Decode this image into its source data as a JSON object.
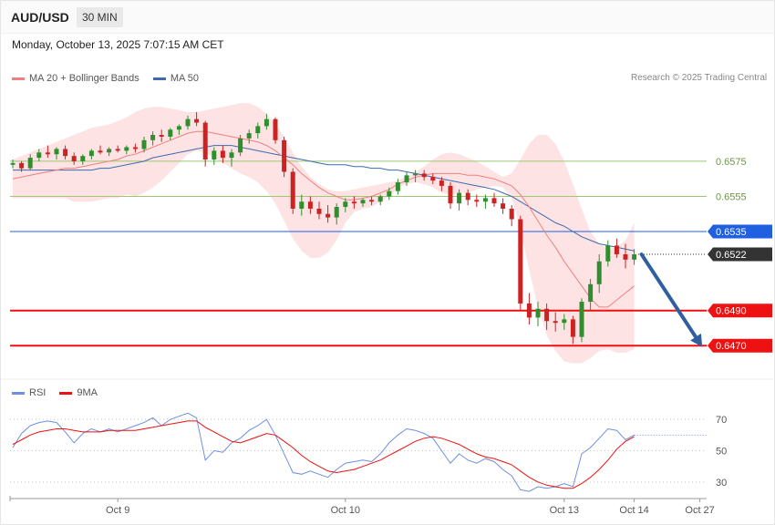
{
  "header": {
    "symbol": "AUD/USD",
    "timeframe": "30 MIN",
    "datetime": "Monday, October 13, 2025 7:07:15 AM CET"
  },
  "legend": {
    "ma20_label": "MA 20 + Bollinger Bands",
    "ma50_label": "MA 50",
    "rsi_label": "RSI",
    "ma9_label": "9MA",
    "credit": "Research © 2025 Trading Central"
  },
  "colors": {
    "ma20": "#f08080",
    "ma50": "#3d6ab0",
    "band_fill": "#fde3e3",
    "candle_up": "#2f8f2f",
    "candle_down": "#cc2222",
    "support": "#ee1111",
    "resistance_blue": "#1f5fe0",
    "resistance_green": "#9cc870",
    "current": "#333333",
    "rsi": "#6f8fe0",
    "rsi_ma": "#ee1111",
    "arrow": "#2f5f9f"
  },
  "chart_data": [
    {
      "type": "candlestick",
      "title": "AUD/USD",
      "ylim": [
        0.6453,
        0.6617
      ],
      "x_ticks": [
        "Oct 9",
        "Oct 10",
        "Oct 13",
        "Oct 14",
        "Oct 27"
      ],
      "levels": [
        {
          "label": "0.6575",
          "value": 0.6575,
          "kind": "resistance"
        },
        {
          "label": "0.6555",
          "value": 0.6555,
          "kind": "resistance"
        },
        {
          "label": "0.6535",
          "value": 0.6535,
          "kind": "pivot"
        },
        {
          "label": "0.6522",
          "value": 0.6522,
          "kind": "current"
        },
        {
          "label": "0.6490",
          "value": 0.649,
          "kind": "support"
        },
        {
          "label": "0.6470",
          "value": 0.647,
          "kind": "support"
        }
      ],
      "forecast": {
        "from": 0.6522,
        "to": 0.647
      },
      "series": [
        {
          "name": "MA 20",
          "values": [
            0.6565,
            0.6566,
            0.6567,
            0.6568,
            0.6569,
            0.657,
            0.6571,
            0.6571,
            0.6572,
            0.6573,
            0.6574,
            0.6575,
            0.6576,
            0.6578,
            0.6579,
            0.6581,
            0.6583,
            0.6585,
            0.6587,
            0.6589,
            0.6591,
            0.6592,
            0.6592,
            0.6591,
            0.659,
            0.6589,
            0.6588,
            0.6587,
            0.6586,
            0.6584,
            0.6581,
            0.6577,
            0.6573,
            0.6568,
            0.6564,
            0.656,
            0.6557,
            0.6555,
            0.6553,
            0.6553,
            0.6554,
            0.6555,
            0.6557,
            0.6559,
            0.6562,
            0.6564,
            0.6566,
            0.6567,
            0.6568,
            0.6568,
            0.6568,
            0.6568,
            0.6567,
            0.6567,
            0.6566,
            0.6565,
            0.6563,
            0.6561,
            0.6556,
            0.6549,
            0.6541,
            0.6533,
            0.6526,
            0.6518,
            0.6511,
            0.6504,
            0.6497,
            0.6492,
            0.6492,
            0.6496,
            0.65,
            0.6504
          ]
        },
        {
          "name": "MA 50",
          "values": [
            0.657,
            0.657,
            0.657,
            0.657,
            0.657,
            0.657,
            0.657,
            0.657,
            0.657,
            0.657,
            0.6571,
            0.6571,
            0.6572,
            0.6573,
            0.6574,
            0.6575,
            0.6577,
            0.6578,
            0.6579,
            0.658,
            0.6581,
            0.6582,
            0.6583,
            0.6584,
            0.6584,
            0.6584,
            0.6583,
            0.6582,
            0.6581,
            0.658,
            0.6579,
            0.6578,
            0.6577,
            0.6576,
            0.6575,
            0.6574,
            0.6573,
            0.6573,
            0.6573,
            0.6572,
            0.6572,
            0.6571,
            0.6571,
            0.657,
            0.657,
            0.6569,
            0.6568,
            0.6567,
            0.6566,
            0.6565,
            0.6564,
            0.6563,
            0.6562,
            0.6561,
            0.656,
            0.6559,
            0.6557,
            0.6555,
            0.6552,
            0.6549,
            0.6546,
            0.6543,
            0.654,
            0.6538,
            0.6535,
            0.6532,
            0.653,
            0.6528,
            0.6527,
            0.6526,
            0.6525,
            0.6524
          ]
        },
        {
          "name": "Bollinger upper",
          "values": [
            0.6576,
            0.6578,
            0.658,
            0.6582,
            0.6584,
            0.6586,
            0.6588,
            0.659,
            0.6592,
            0.6594,
            0.6595,
            0.6596,
            0.6598,
            0.66,
            0.6603,
            0.6605,
            0.6606,
            0.6606,
            0.6605,
            0.6604,
            0.6603,
            0.6603,
            0.6604,
            0.6605,
            0.6606,
            0.6607,
            0.6608,
            0.6608,
            0.6606,
            0.6602,
            0.6596,
            0.6589,
            0.658,
            0.6572,
            0.6566,
            0.6562,
            0.6559,
            0.6558,
            0.6558,
            0.6559,
            0.656,
            0.6561,
            0.6562,
            0.6563,
            0.6564,
            0.6566,
            0.6569,
            0.6572,
            0.6576,
            0.6579,
            0.658,
            0.6579,
            0.6577,
            0.6575,
            0.6572,
            0.6569,
            0.6566,
            0.6568,
            0.6576,
            0.6585,
            0.659,
            0.659,
            0.6585,
            0.6575,
            0.6562,
            0.6548,
            0.6535,
            0.6528,
            0.6525,
            0.6526,
            0.653,
            0.654
          ]
        },
        {
          "name": "Bollinger lower",
          "values": [
            0.6554,
            0.6554,
            0.6554,
            0.6554,
            0.6554,
            0.6554,
            0.6554,
            0.6552,
            0.6552,
            0.6552,
            0.6553,
            0.6554,
            0.6554,
            0.6556,
            0.6555,
            0.6557,
            0.656,
            0.6564,
            0.6569,
            0.6574,
            0.6579,
            0.6581,
            0.658,
            0.6577,
            0.6574,
            0.6571,
            0.6568,
            0.6566,
            0.6563,
            0.6558,
            0.6551,
            0.6541,
            0.6531,
            0.6524,
            0.652,
            0.652,
            0.6523,
            0.653,
            0.654,
            0.6546,
            0.6548,
            0.6549,
            0.6552,
            0.6555,
            0.656,
            0.6562,
            0.6563,
            0.6562,
            0.656,
            0.6557,
            0.6556,
            0.6557,
            0.6557,
            0.6559,
            0.656,
            0.6561,
            0.656,
            0.6554,
            0.6536,
            0.6513,
            0.6492,
            0.6476,
            0.6467,
            0.6461,
            0.646,
            0.646,
            0.6463,
            0.6467,
            0.6468,
            0.6466,
            0.6466,
            0.6468
          ]
        },
        {
          "name": "candles",
          "values": [
            [
              0.6573,
              0.6576,
              0.6571,
              0.6574
            ],
            [
              0.6574,
              0.6575,
              0.6569,
              0.6571
            ],
            [
              0.6571,
              0.6579,
              0.657,
              0.6577
            ],
            [
              0.6577,
              0.6582,
              0.6575,
              0.658
            ],
            [
              0.658,
              0.6584,
              0.6577,
              0.6579
            ],
            [
              0.6579,
              0.6583,
              0.6576,
              0.6582
            ],
            [
              0.6582,
              0.6584,
              0.6576,
              0.6578
            ],
            [
              0.6578,
              0.658,
              0.6573,
              0.6575
            ],
            [
              0.6575,
              0.6579,
              0.6573,
              0.6578
            ],
            [
              0.6578,
              0.6582,
              0.6576,
              0.6581
            ],
            [
              0.6581,
              0.6584,
              0.6579,
              0.658
            ],
            [
              0.658,
              0.6583,
              0.6578,
              0.6582
            ],
            [
              0.6582,
              0.6584,
              0.658,
              0.6581
            ],
            [
              0.6581,
              0.6584,
              0.6579,
              0.6583
            ],
            [
              0.6583,
              0.6585,
              0.658,
              0.6582
            ],
            [
              0.6582,
              0.6589,
              0.658,
              0.6587
            ],
            [
              0.6587,
              0.6592,
              0.6584,
              0.659
            ],
            [
              0.659,
              0.6593,
              0.6586,
              0.6589
            ],
            [
              0.6589,
              0.6594,
              0.6587,
              0.6593
            ],
            [
              0.6593,
              0.6596,
              0.659,
              0.6595
            ],
            [
              0.6595,
              0.6601,
              0.6593,
              0.6599
            ],
            [
              0.6599,
              0.6603,
              0.6595,
              0.6597
            ],
            [
              0.6597,
              0.6598,
              0.6572,
              0.6576
            ],
            [
              0.6576,
              0.6583,
              0.6573,
              0.6581
            ],
            [
              0.6581,
              0.6584,
              0.6574,
              0.6577
            ],
            [
              0.6577,
              0.6582,
              0.6572,
              0.658
            ],
            [
              0.658,
              0.659,
              0.6578,
              0.6588
            ],
            [
              0.6588,
              0.6593,
              0.6585,
              0.6591
            ],
            [
              0.6591,
              0.6597,
              0.6588,
              0.6595
            ],
            [
              0.6595,
              0.6602,
              0.6593,
              0.6599
            ],
            [
              0.6599,
              0.66,
              0.6585,
              0.6587
            ],
            [
              0.6587,
              0.6589,
              0.6566,
              0.6569
            ],
            [
              0.6569,
              0.6571,
              0.6545,
              0.6548
            ],
            [
              0.6548,
              0.6556,
              0.6544,
              0.6552
            ],
            [
              0.6552,
              0.6555,
              0.6545,
              0.6548
            ],
            [
              0.6548,
              0.6552,
              0.6542,
              0.6545
            ],
            [
              0.6545,
              0.655,
              0.654,
              0.6543
            ],
            [
              0.6543,
              0.6551,
              0.6539,
              0.6549
            ],
            [
              0.6549,
              0.6554,
              0.6546,
              0.6552
            ],
            [
              0.6552,
              0.6555,
              0.6548,
              0.6551
            ],
            [
              0.6551,
              0.6554,
              0.6549,
              0.6553
            ],
            [
              0.6553,
              0.6555,
              0.655,
              0.6552
            ],
            [
              0.6552,
              0.6556,
              0.655,
              0.6555
            ],
            [
              0.6555,
              0.656,
              0.6553,
              0.6558
            ],
            [
              0.6558,
              0.6565,
              0.6556,
              0.6563
            ],
            [
              0.6563,
              0.6569,
              0.6561,
              0.6567
            ],
            [
              0.6567,
              0.657,
              0.6563,
              0.6568
            ],
            [
              0.6568,
              0.657,
              0.6564,
              0.6566
            ],
            [
              0.6566,
              0.6568,
              0.6562,
              0.6564
            ],
            [
              0.6564,
              0.6566,
              0.6558,
              0.6561
            ],
            [
              0.6561,
              0.6563,
              0.6548,
              0.6551
            ],
            [
              0.6551,
              0.6559,
              0.6547,
              0.6557
            ],
            [
              0.6557,
              0.6559,
              0.655,
              0.6553
            ],
            [
              0.6553,
              0.6556,
              0.6549,
              0.6552
            ],
            [
              0.6552,
              0.6556,
              0.6548,
              0.6554
            ],
            [
              0.6554,
              0.6557,
              0.6549,
              0.6551
            ],
            [
              0.6551,
              0.6554,
              0.6545,
              0.6548
            ],
            [
              0.6548,
              0.655,
              0.6538,
              0.6542
            ],
            [
              0.6542,
              0.6544,
              0.649,
              0.6494
            ],
            [
              0.6494,
              0.65,
              0.6482,
              0.6486
            ],
            [
              0.6486,
              0.6495,
              0.6481,
              0.6491
            ],
            [
              0.6491,
              0.6494,
              0.6479,
              0.6484
            ],
            [
              0.6484,
              0.6489,
              0.6478,
              0.6483
            ],
            [
              0.6483,
              0.6488,
              0.6479,
              0.6485
            ],
            [
              0.6485,
              0.6487,
              0.6471,
              0.6475
            ],
            [
              0.6475,
              0.6497,
              0.6472,
              0.6495
            ],
            [
              0.6495,
              0.6508,
              0.649,
              0.6505
            ],
            [
              0.6505,
              0.6522,
              0.65,
              0.6518
            ],
            [
              0.6518,
              0.653,
              0.6515,
              0.6527
            ],
            [
              0.6527,
              0.6531,
              0.652,
              0.6522
            ],
            [
              0.6522,
              0.6528,
              0.6514,
              0.6519
            ],
            [
              0.6519,
              0.6525,
              0.6516,
              0.6522
            ]
          ]
        }
      ]
    },
    {
      "type": "line",
      "title": "RSI",
      "ylim": [
        20,
        80
      ],
      "y_ticks": [
        "70",
        "50",
        "30"
      ],
      "series": [
        {
          "name": "RSI",
          "values": [
            52,
            61,
            66,
            68,
            69,
            68,
            62,
            55,
            61,
            64,
            62,
            64,
            62,
            64,
            66,
            68,
            71,
            66,
            70,
            72,
            74,
            71,
            44,
            50,
            49,
            55,
            58,
            63,
            66,
            70,
            60,
            48,
            36,
            35,
            37,
            35,
            33,
            38,
            42,
            43,
            44,
            43,
            48,
            55,
            60,
            64,
            63,
            61,
            58,
            50,
            42,
            48,
            44,
            42,
            45,
            43,
            38,
            34,
            25,
            24,
            27,
            26,
            27,
            29,
            27,
            48,
            52,
            58,
            64,
            63,
            57,
            60
          ]
        },
        {
          "name": "9MA",
          "values": [
            54,
            57,
            60,
            62,
            63,
            64,
            64,
            63,
            62,
            62,
            62,
            63,
            63,
            63,
            63,
            64,
            65,
            66,
            67,
            68,
            69,
            69,
            65,
            62,
            59,
            56,
            55,
            57,
            59,
            61,
            60,
            56,
            52,
            47,
            43,
            40,
            37,
            36,
            37,
            38,
            40,
            42,
            44,
            47,
            50,
            53,
            56,
            58,
            59,
            58,
            56,
            54,
            51,
            48,
            46,
            45,
            43,
            41,
            37,
            33,
            30,
            28,
            27,
            26,
            26,
            29,
            33,
            38,
            44,
            51,
            56,
            59
          ]
        }
      ]
    }
  ]
}
